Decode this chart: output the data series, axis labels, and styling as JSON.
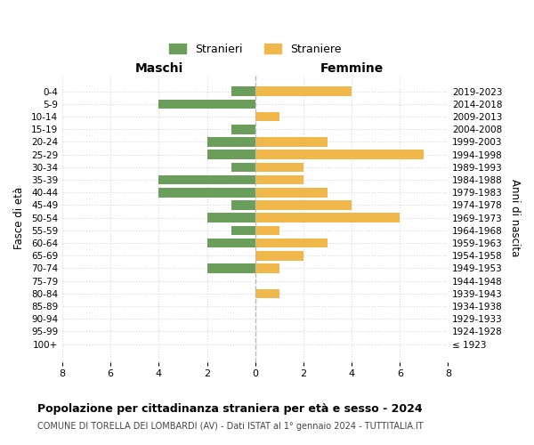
{
  "age_groups": [
    "0-4",
    "5-9",
    "10-14",
    "15-19",
    "20-24",
    "25-29",
    "30-34",
    "35-39",
    "40-44",
    "45-49",
    "50-54",
    "55-59",
    "60-64",
    "65-69",
    "70-74",
    "75-79",
    "80-84",
    "85-89",
    "90-94",
    "95-99",
    "100+"
  ],
  "birth_years": [
    "2019-2023",
    "2014-2018",
    "2009-2013",
    "2004-2008",
    "1999-2003",
    "1994-1998",
    "1989-1993",
    "1984-1988",
    "1979-1983",
    "1974-1978",
    "1969-1973",
    "1964-1968",
    "1959-1963",
    "1954-1958",
    "1949-1953",
    "1944-1948",
    "1939-1943",
    "1934-1938",
    "1929-1933",
    "1924-1928",
    "≤ 1923"
  ],
  "maschi": [
    1,
    4,
    0,
    1,
    2,
    2,
    1,
    4,
    4,
    1,
    2,
    1,
    2,
    0,
    2,
    0,
    0,
    0,
    0,
    0,
    0
  ],
  "femmine": [
    4,
    0,
    1,
    0,
    3,
    7,
    2,
    2,
    3,
    4,
    6,
    1,
    3,
    2,
    1,
    0,
    1,
    0,
    0,
    0,
    0
  ],
  "color_maschi": "#6a9e5a",
  "color_femmine": "#f0b84a",
  "title": "Popolazione per cittadinanza straniera per età e sesso - 2024",
  "subtitle": "COMUNE DI TORELLA DEI LOMBARDI (AV) - Dati ISTAT al 1° gennaio 2024 - TUTTITALIA.IT",
  "xlabel_left": "Maschi",
  "xlabel_right": "Femmine",
  "ylabel_left": "Fasce di età",
  "ylabel_right": "Anni di nascita",
  "legend_maschi": "Stranieri",
  "legend_femmine": "Straniere",
  "xlim": 8,
  "background_color": "#ffffff",
  "grid_color": "#d8d8d8"
}
